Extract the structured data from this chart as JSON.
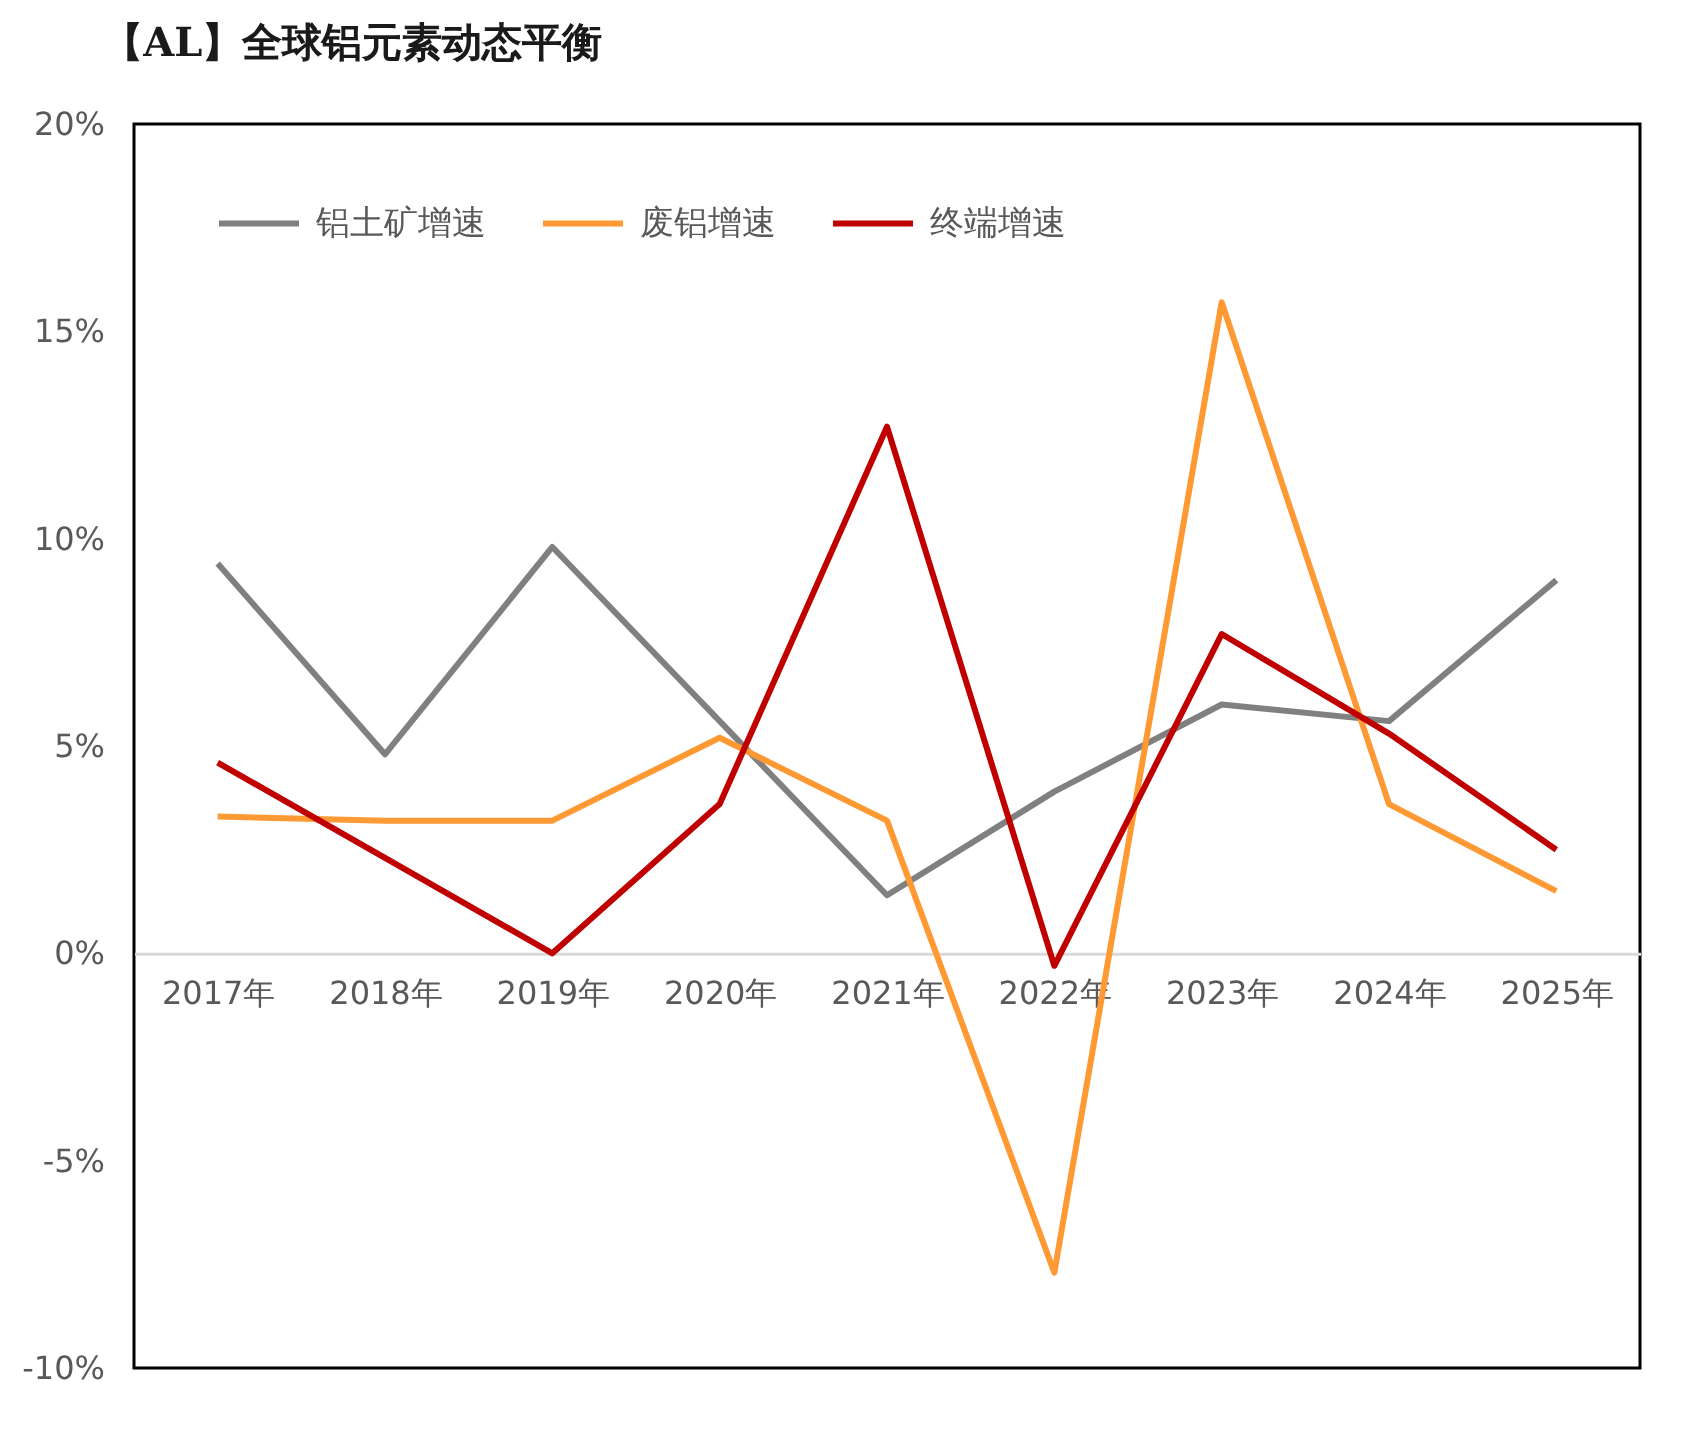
{
  "chart_data": {
    "type": "line",
    "title": "【AL】全球铝元素动态平衡",
    "categories": [
      "2017年",
      "2018年",
      "2019年",
      "2020年",
      "2021年",
      "2022年",
      "2023年",
      "2024年",
      "2025年"
    ],
    "series": [
      {
        "name": "铝土矿增速",
        "color": "#808080",
        "values": [
          9.4,
          4.8,
          9.8,
          5.6,
          1.4,
          3.9,
          6.0,
          5.6,
          9.0
        ]
      },
      {
        "name": "废铝增速",
        "color": "#ff9933",
        "values": [
          3.3,
          3.2,
          3.2,
          5.2,
          3.2,
          -7.7,
          15.7,
          3.6,
          1.5
        ]
      },
      {
        "name": "终端增速",
        "color": "#c00000",
        "values": [
          4.6,
          2.3,
          0,
          3.6,
          12.7,
          -0.3,
          7.7,
          5.3,
          2.5
        ]
      }
    ],
    "ylim": [
      -10,
      20
    ],
    "yticks": [
      {
        "value": -10,
        "label": "-10%"
      },
      {
        "value": -5,
        "label": "-5%"
      },
      {
        "value": 0,
        "label": "0%"
      },
      {
        "value": 5,
        "label": "5%"
      },
      {
        "value": 10,
        "label": "10%"
      },
      {
        "value": 15,
        "label": "15%"
      },
      {
        "value": 20,
        "label": "20%"
      }
    ],
    "legend": "top left"
  }
}
